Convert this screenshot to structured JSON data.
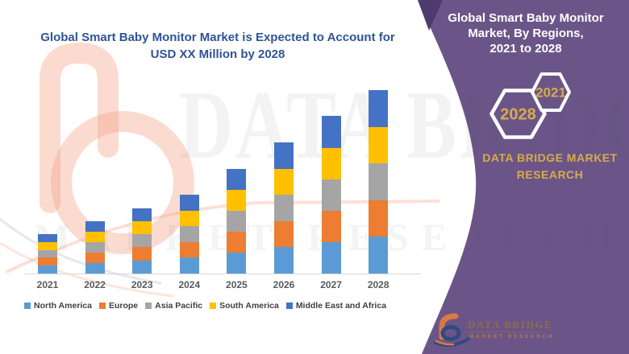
{
  "main_title": {
    "lines": [
      "Global Smart Baby Monitor Market is Expected to Account for",
      "USD XX Million by 2028"
    ],
    "color": "#2F5496"
  },
  "side_panel": {
    "bg_color": "#6B5588",
    "edge_accent_color": "#4E3A6C",
    "title_lines": [
      "Global Smart Baby Monitor",
      "Market, By Regions,",
      "2021 to 2028"
    ],
    "hexagons": [
      {
        "label": "2028"
      },
      {
        "label": "2021"
      }
    ],
    "brand_lines": [
      "DATA BRIDGE MARKET",
      "RESEARCH"
    ],
    "accent_color": "#D8AC4A"
  },
  "footer_logo": {
    "title": "DATA BRIDGE",
    "subtitle": "MARKET RESEARCH"
  },
  "watermark": {
    "row1": "DATA BRIDGE",
    "row2": "MARKET RESEARCH"
  },
  "chart_data": {
    "type": "bar",
    "stacked": true,
    "title": "Global Smart Baby Monitor Market is Expected to Account for USD XX Million by 2028",
    "categories": [
      "2021",
      "2022",
      "2023",
      "2024",
      "2025",
      "2026",
      "2027",
      "2028"
    ],
    "series": [
      {
        "name": "North America",
        "color": "#5B9BD5",
        "values": [
          0.6,
          0.8,
          1.0,
          1.2,
          1.6,
          2.0,
          2.4,
          2.8
        ]
      },
      {
        "name": "Europe",
        "color": "#ED7D31",
        "values": [
          0.6,
          0.8,
          1.0,
          1.2,
          1.6,
          2.0,
          2.4,
          2.8
        ]
      },
      {
        "name": "Asia Pacific",
        "color": "#A5A5A5",
        "values": [
          0.6,
          0.8,
          1.0,
          1.2,
          1.6,
          2.0,
          2.4,
          2.8
        ]
      },
      {
        "name": "South America",
        "color": "#FFC000",
        "values": [
          0.6,
          0.8,
          1.0,
          1.2,
          1.6,
          2.0,
          2.4,
          2.8
        ]
      },
      {
        "name": "Middle East and Africa",
        "color": "#4472C4",
        "values": [
          0.6,
          0.8,
          1.0,
          1.2,
          1.6,
          2.0,
          2.4,
          2.8
        ]
      }
    ],
    "bar_totals": [
      3,
      4,
      5,
      6,
      8,
      10,
      12,
      14
    ],
    "units": "relative index (actual values shown as USD XX Million)",
    "xlabel": "",
    "ylabel": "",
    "y_axis_visible": false,
    "grid": false,
    "legend_position": "bottom"
  }
}
